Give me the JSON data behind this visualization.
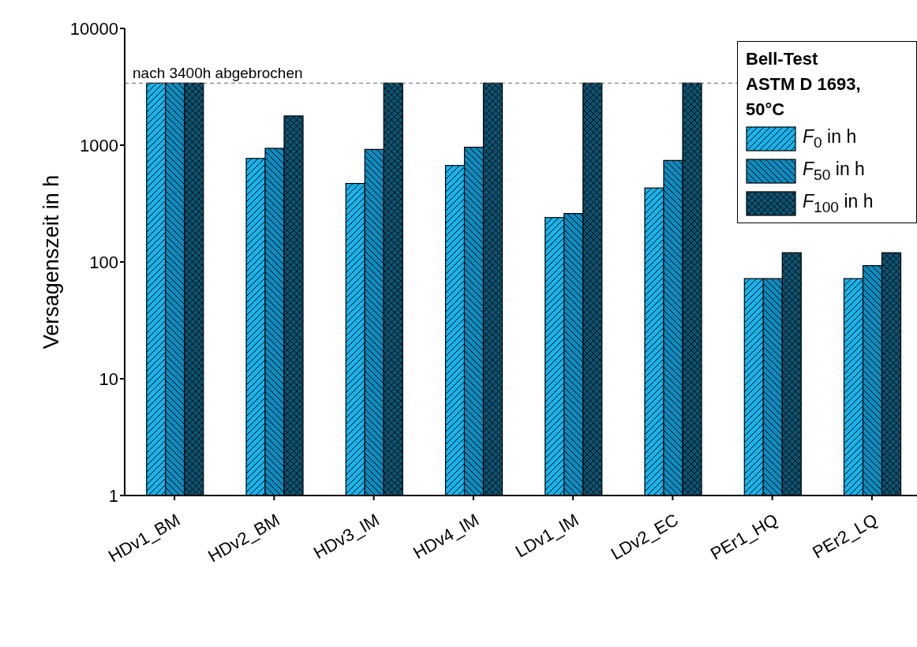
{
  "chart_data": {
    "type": "bar",
    "ylabel": "Versagenszeit in h",
    "legend_title": "Bell-Test\nASTM D 1693,\n50°C",
    "categories": [
      "HDv1_BM",
      "HDv2_BM",
      "HDv3_IM",
      "HDv4_IM",
      "LDv1_IM",
      "LDv2_EC",
      "PEr1_HQ",
      "PEr2_LQ"
    ],
    "series": [
      {
        "name": "F$_{0}$ in h",
        "color": "#16b4ec",
        "values": [
          3400,
          770,
          470,
          670,
          240,
          430,
          72,
          72
        ]
      },
      {
        "name": "F$_{50}$ in h",
        "color": "#0a8cc0",
        "values": [
          3400,
          940,
          920,
          960,
          260,
          740,
          72,
          93
        ]
      },
      {
        "name": "F$_{100}$ in h",
        "color": "#0a5473",
        "values": [
          3400,
          1780,
          3400,
          3400,
          3400,
          3400,
          120,
          120
        ]
      }
    ],
    "log": true,
    "ylim": [
      1,
      10000
    ],
    "yticks": [
      1,
      10,
      100,
      1000,
      10000
    ],
    "ref_lines": [
      {
        "axis": "y",
        "value": 3400,
        "label": "nach 3400h abgebrochen",
        "color": "#666666",
        "line_style": "dashed"
      }
    ],
    "grid": false,
    "legend": "top right"
  }
}
